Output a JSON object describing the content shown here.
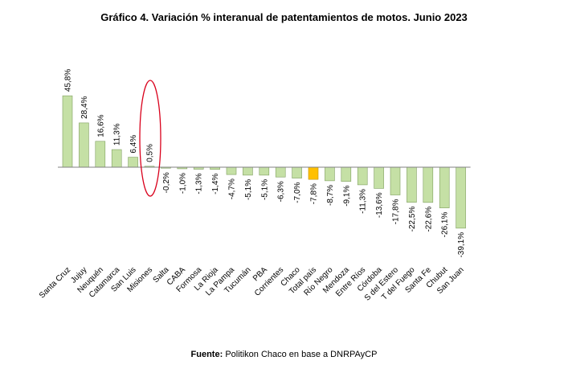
{
  "chart_data": {
    "type": "bar",
    "title": "Gráfico 4. Variación % interanual de patentamientos de motos. Junio 2023",
    "categories": [
      "Santa Cruz",
      "Jujuy",
      "Neuquén",
      "Catamarca",
      "San Luis",
      "Misiones",
      "Salta",
      "CABA",
      "Formosa",
      "La Rioja",
      "La Pampa",
      "Tucumán",
      "PBA",
      "Corrientes",
      "Chaco",
      "Total país",
      "Río Negro",
      "Mendoza",
      "Entre Ríos",
      "Córdoba",
      "S del Estero",
      "T del Fuego",
      "Santa Fe",
      "Chubut",
      "San Juan"
    ],
    "values": [
      45.8,
      28.4,
      16.6,
      11.3,
      6.4,
      0.5,
      -0.2,
      -1.0,
      -1.3,
      -1.4,
      -4.7,
      -5.1,
      -5.1,
      -6.3,
      -7.0,
      -7.8,
      -8.7,
      -9.1,
      -11.3,
      -13.6,
      -17.8,
      -22.5,
      -22.6,
      -26.1,
      -39.1
    ],
    "value_labels": [
      "45,8%",
      "28,4%",
      "16,6%",
      "11,3%",
      "6,4%",
      "0,5%",
      "-0,2%",
      "-1,0%",
      "-1,3%",
      "-1,4%",
      "-4,7%",
      "-5,1%",
      "-5,1%",
      "-6,3%",
      "-7,0%",
      "-7,8%",
      "-8,7%",
      "-9,1%",
      "-11,3%",
      "-13,6%",
      "-17,8%",
      "-22,5%",
      "-22,6%",
      "-26,1%",
      "-39,1%"
    ],
    "highlight_category": "Total país",
    "circled_category": "Misiones",
    "colors": {
      "bar": "#c5e0a5",
      "bar_stroke": "#7f9f5f",
      "highlight_bar": "#ffc000",
      "highlight_stroke": "#bf9000",
      "axis": "#808080",
      "circle": "#d9001b"
    },
    "xlabel": "",
    "ylabel": "",
    "grid": false,
    "legend": "none"
  },
  "source": {
    "label": "Fuente:",
    "text": " Politikon Chaco en base a DNRPAyCP"
  }
}
